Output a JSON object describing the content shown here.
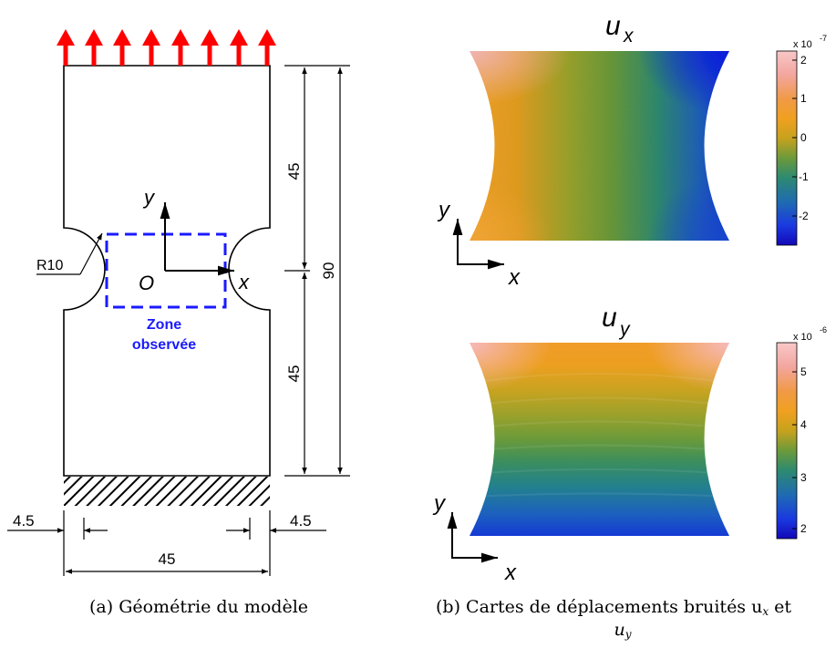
{
  "geometry": {
    "dims": {
      "h_upper": "45",
      "h_lower": "45",
      "h_total": "90",
      "width": "45",
      "offset_left": "4.5",
      "offset_right": "4.5",
      "radius": "R10"
    },
    "origin_label": "O",
    "axis_x": "x",
    "axis_y": "y",
    "zone_line1": "Zone",
    "zone_line2": "observée",
    "colors": {
      "arrows": "#ff0000",
      "zone": "#1a1aff"
    }
  },
  "maps": {
    "ux": {
      "title_main": "u",
      "title_sub": "x",
      "exponent": "x 10",
      "exponent_power": "-7",
      "ticks": [
        "2",
        "1",
        "0",
        "-1",
        "-2"
      ],
      "axis_x": "x",
      "axis_y": "y"
    },
    "uy": {
      "title_main": "u",
      "title_sub": "y",
      "exponent": "x 10",
      "exponent_power": "-6",
      "ticks": [
        "5",
        "4",
        "3",
        "2"
      ],
      "axis_x": "x",
      "axis_y": "y"
    }
  },
  "captions": {
    "a": "(a)  Géométrie du modèle",
    "b_line1": "(b)  Cartes de déplacements bruités u",
    "b_sub1": "x",
    "b_mid": " et",
    "b_line2": "u",
    "b_sub2": "y"
  }
}
